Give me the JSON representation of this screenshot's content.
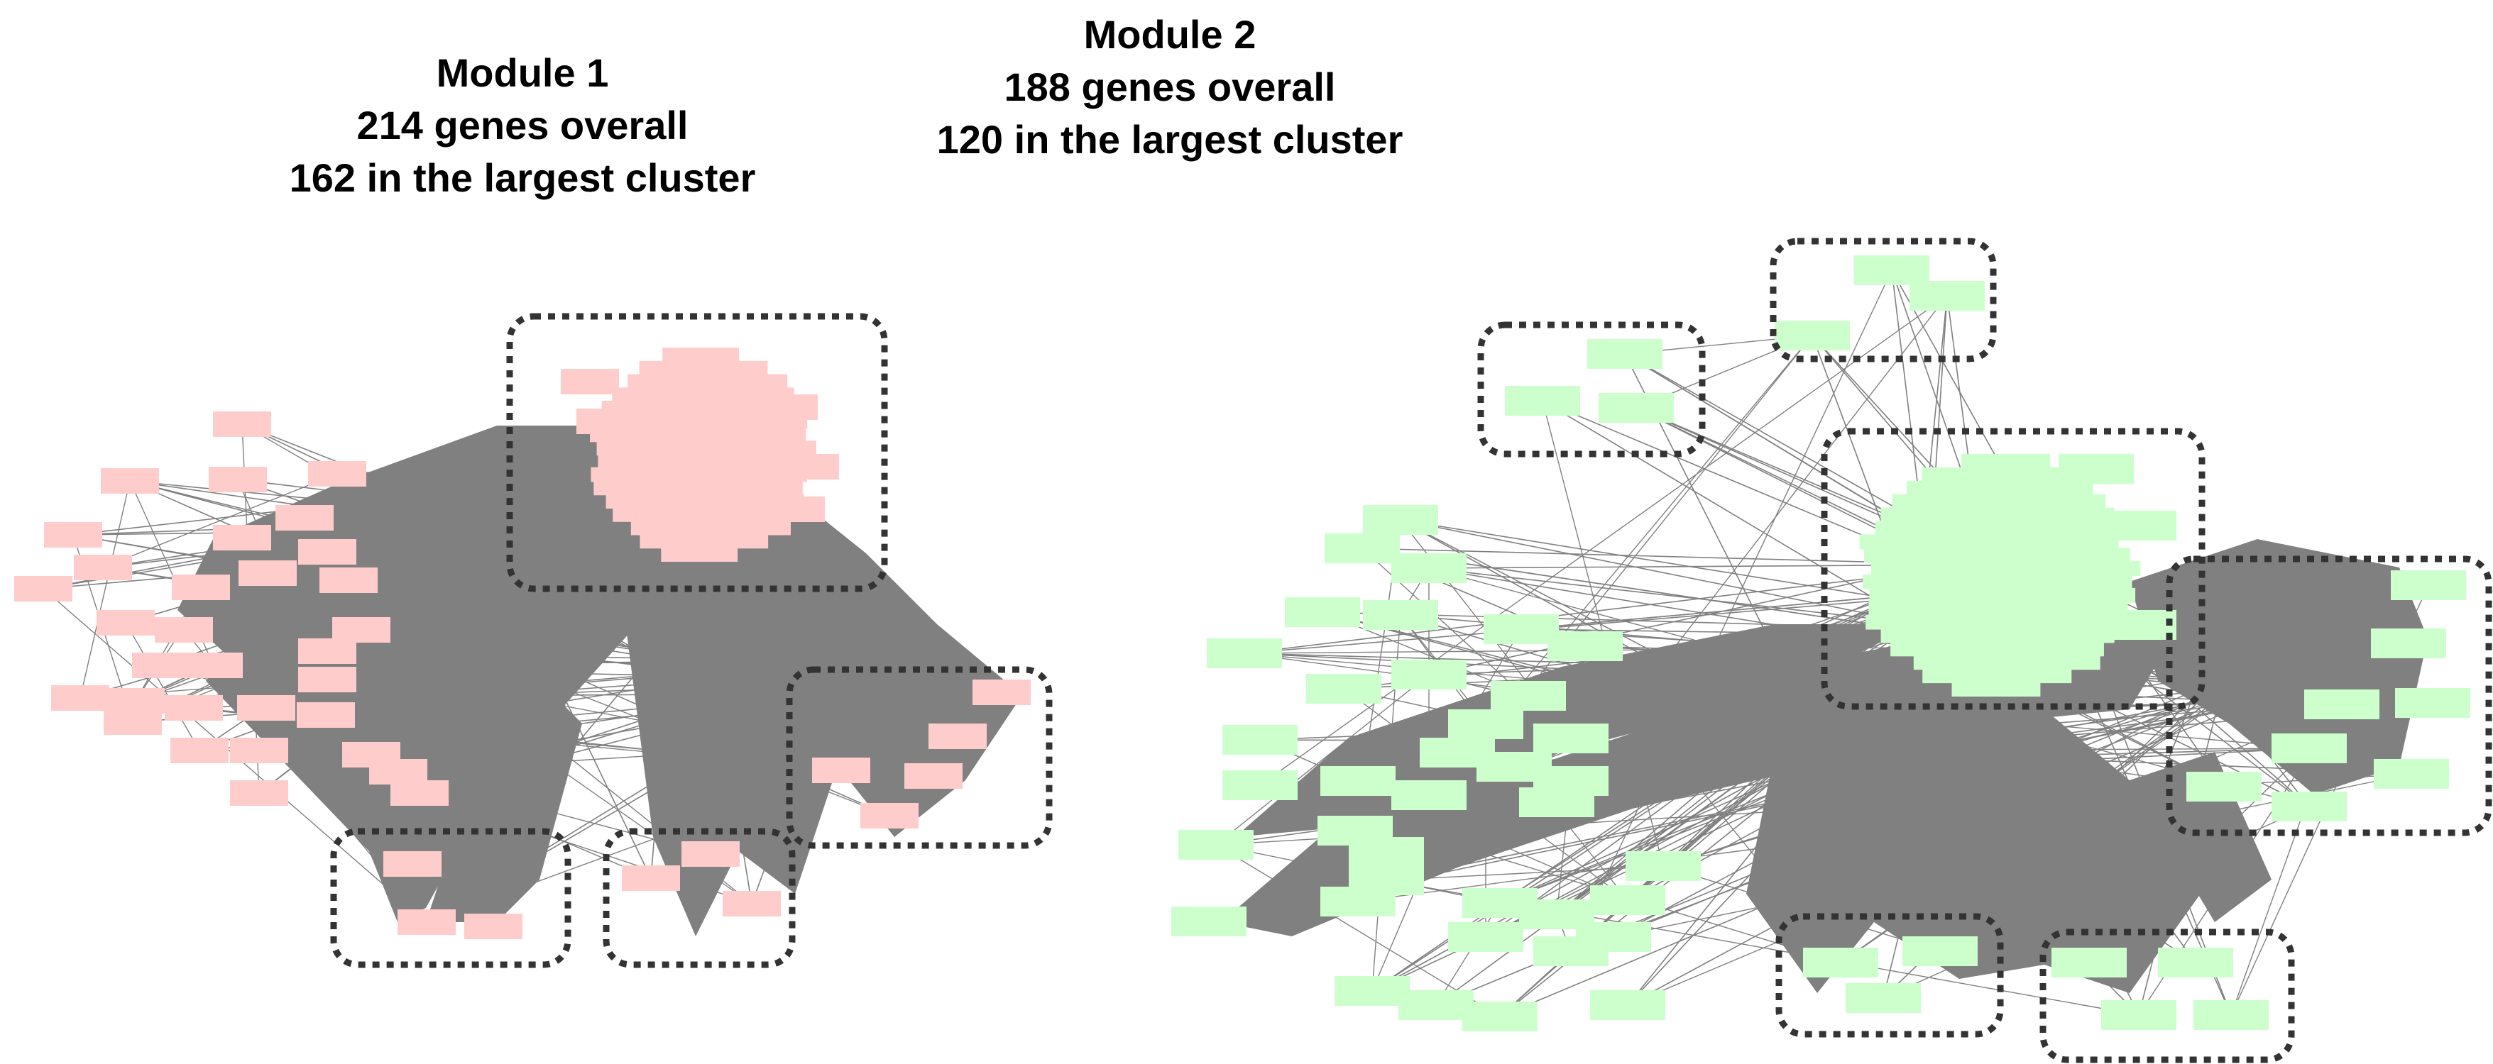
{
  "colors": {
    "module_1_node": "#ffcccc",
    "module_2_node": "#ccffcc",
    "edge": "#808080",
    "cluster_outline": "#333333",
    "background": "#ffffff"
  },
  "modules": [
    {
      "title": "Module 1",
      "genes_overall": "214 genes overall",
      "largest_cluster": "162 in the largest cluster",
      "gene_count": 214,
      "largest_cluster_count": 162,
      "node_color": "#ffcccc"
    },
    {
      "title": "Module 2",
      "genes_overall": "188 genes overall",
      "largest_cluster": "120 in the largest cluster",
      "gene_count": 188,
      "largest_cluster_count": 120,
      "node_color": "#ccffcc"
    }
  ]
}
